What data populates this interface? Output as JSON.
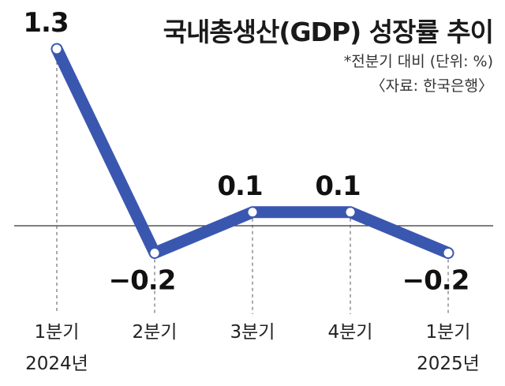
{
  "chart_data": {
    "type": "line",
    "title": "국내총생산(GDP) 성장률 추이",
    "subtitle": "*전분기 대비 (단위: %)",
    "source": "〈자료: 한국은행〉",
    "categories": [
      [
        "1분기",
        "2024년"
      ],
      [
        "2분기",
        ""
      ],
      [
        "3분기",
        ""
      ],
      [
        "4분기",
        ""
      ],
      [
        "1분기",
        "2025년"
      ]
    ],
    "values": [
      1.3,
      -0.2,
      0.1,
      0.1,
      -0.2
    ],
    "value_labels": [
      "1.3",
      "−0.2",
      "0.1",
      "0.1",
      "−0.2"
    ],
    "xlabel": "",
    "ylabel": "",
    "ylim": [
      -0.35,
      1.35
    ],
    "grid": false,
    "zero_line": true,
    "line_color": "#3a57b0",
    "marker_fill": "#ffffff"
  }
}
